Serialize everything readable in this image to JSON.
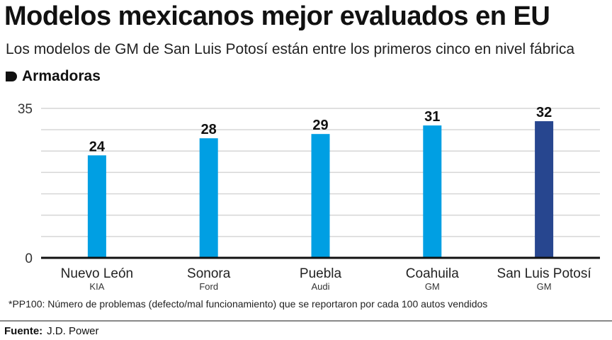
{
  "title": "Modelos mexicanos mejor evaluados en EU",
  "subtitle": "Los modelos de GM de San Luis Potosí están entre los primeros cinco en nivel fábrica",
  "section_label": "Armadoras",
  "chart_data": {
    "type": "bar",
    "categories": [
      "Nuevo León",
      "Sonora",
      "Puebla",
      "Coahuila",
      "San Luis Potosí"
    ],
    "subcategories": [
      "KIA",
      "Ford",
      "Audi",
      "GM",
      "GM"
    ],
    "values": [
      24,
      28,
      29,
      31,
      32
    ],
    "colors": [
      "#009fe3",
      "#009fe3",
      "#009fe3",
      "#009fe3",
      "#27468f"
    ],
    "ylim": [
      0,
      35
    ],
    "yticks": [
      0,
      35
    ],
    "grid_step": 5,
    "grid": true
  },
  "footnote": "*PP100: Número de problemas (defecto/mal funcionamiento) que se reportaron por cada 100 autos vendidos",
  "source": {
    "label": "Fuente:",
    "value": "J.D. Power"
  }
}
